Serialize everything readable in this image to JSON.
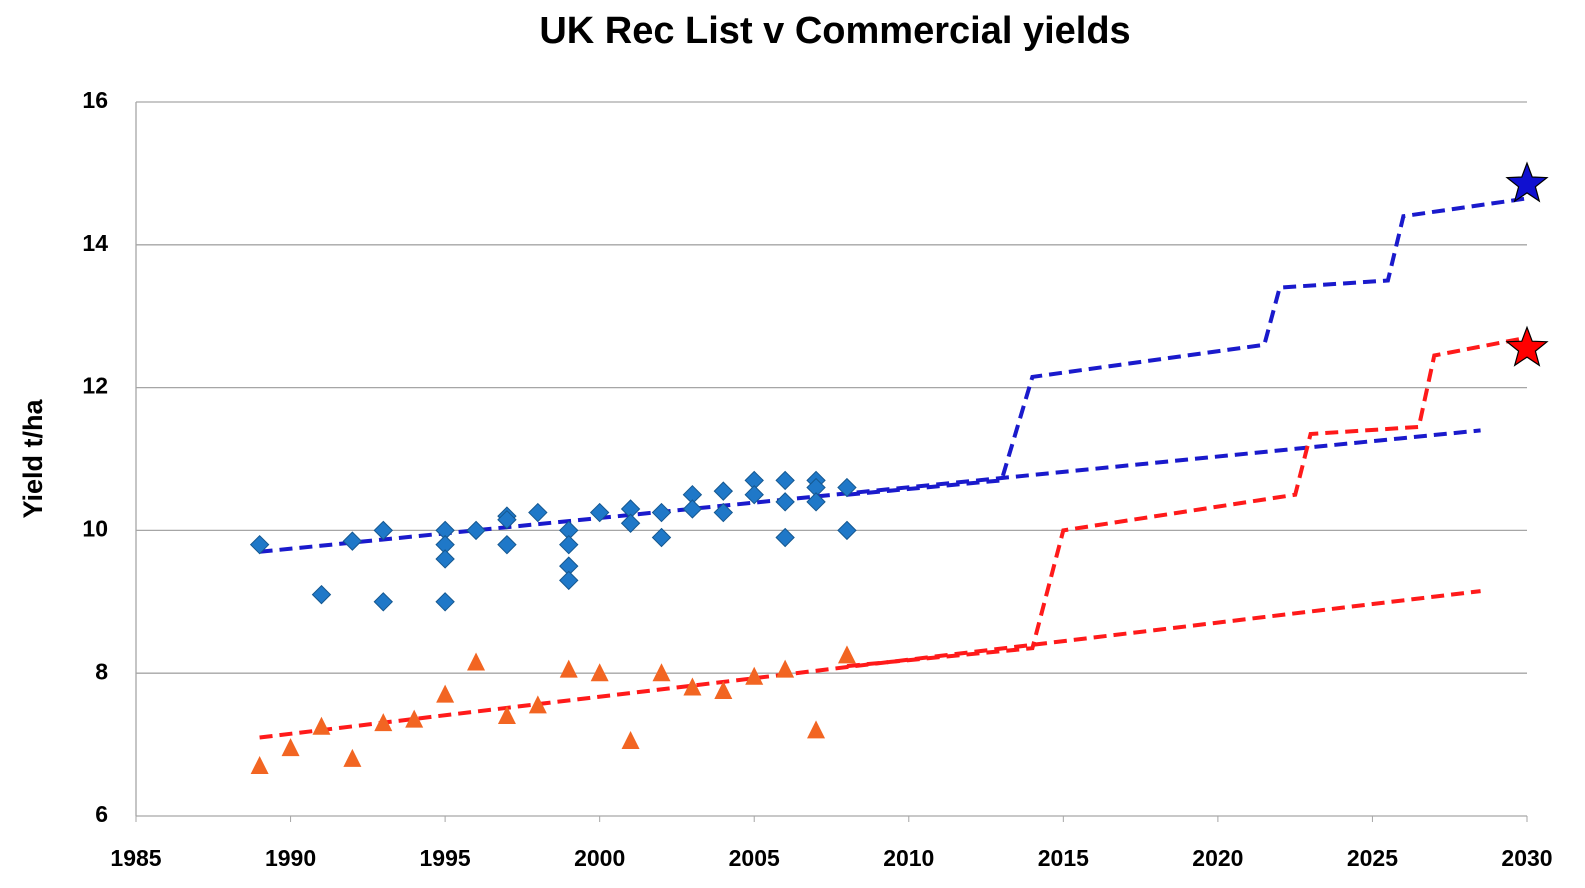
{
  "chart_data": {
    "type": "scatter",
    "title": "UK Rec List v Commercial yields",
    "y_label": "Yield t/ha",
    "xlim": [
      1985,
      2030
    ],
    "xticks": [
      1985,
      1990,
      1995,
      2000,
      2005,
      2010,
      2015,
      2020,
      2025,
      2030
    ],
    "ylim": [
      6,
      16
    ],
    "yticks": [
      6,
      8,
      10,
      12,
      14,
      16
    ],
    "grid": true,
    "series": [
      {
        "marker": "diamond",
        "color": "#1f78c8",
        "x": [
          1989,
          1991,
          1992,
          1993,
          1993,
          1995,
          1995,
          1995,
          1995,
          1996,
          1997,
          1997,
          1997,
          1998,
          1999,
          1999,
          1999,
          1999,
          2000,
          2001,
          2001,
          2002,
          2002,
          2003,
          2003,
          2004,
          2004,
          2005,
          2005,
          2006,
          2006,
          2006,
          2007,
          2007,
          2007,
          2008,
          2008
        ],
        "values": [
          9.8,
          9.1,
          9.85,
          10.0,
          9.0,
          10.0,
          9.8,
          9.6,
          9.0,
          10.0,
          10.2,
          9.8,
          10.15,
          10.25,
          10.0,
          9.8,
          9.5,
          9.3,
          10.25,
          10.3,
          10.1,
          10.25,
          9.9,
          10.5,
          10.3,
          10.55,
          10.25,
          10.7,
          10.5,
          10.7,
          10.4,
          9.9,
          10.7,
          10.6,
          10.4,
          10.6,
          10.0
        ]
      },
      {
        "marker": "triangle",
        "color": "#f26522",
        "x": [
          1989,
          1990,
          1991,
          1992,
          1993,
          1994,
          1995,
          1996,
          1997,
          1998,
          1999,
          2000,
          2001,
          2002,
          2003,
          2004,
          2005,
          2006,
          2007,
          2008
        ],
        "values": [
          6.7,
          6.95,
          7.25,
          6.8,
          7.3,
          7.35,
          7.7,
          8.15,
          7.4,
          7.55,
          8.05,
          8.0,
          7.05,
          8.0,
          7.8,
          7.75,
          7.95,
          8.05,
          7.2,
          8.25
        ]
      },
      {
        "marker": "dashed-line",
        "color": "#1a1acc",
        "x": [
          1989,
          2028.5
        ],
        "values": [
          9.7,
          11.4
        ]
      },
      {
        "marker": "dashed-line",
        "color": "#1a1acc",
        "x": [
          2008,
          2013,
          2014,
          2021.5,
          2022,
          2025.5,
          2026,
          2030
        ],
        "values": [
          10.5,
          10.7,
          12.15,
          12.6,
          13.4,
          13.5,
          14.4,
          14.65
        ]
      },
      {
        "marker": "dashed-line",
        "color": "#ff1a1a",
        "x": [
          1989,
          2028.5
        ],
        "values": [
          7.1,
          9.15
        ]
      },
      {
        "marker": "dashed-line",
        "color": "#ff1a1a",
        "x": [
          2008,
          2014,
          2015,
          2022.5,
          2023,
          2026.5,
          2027,
          2030
        ],
        "values": [
          8.1,
          8.35,
          10.0,
          10.5,
          11.35,
          11.45,
          12.45,
          12.7
        ]
      },
      {
        "marker": "star",
        "color": "#1010d0",
        "x": [
          2030
        ],
        "values": [
          14.85
        ]
      },
      {
        "marker": "star",
        "color": "#ff0000",
        "x": [
          2030
        ],
        "values": [
          12.55
        ]
      }
    ]
  }
}
